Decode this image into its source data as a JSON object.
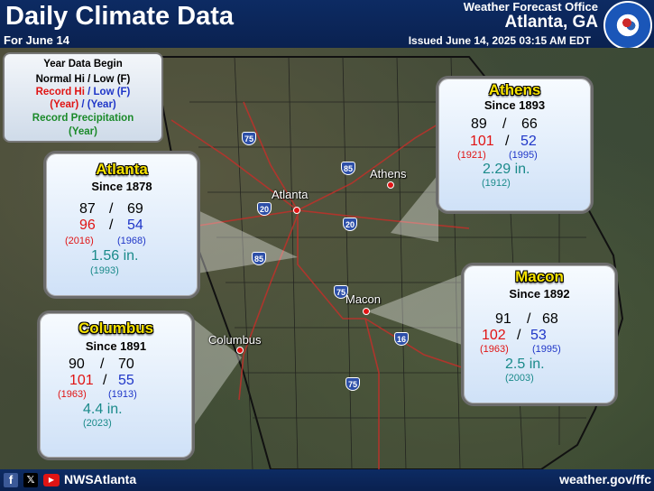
{
  "header": {
    "title": "Daily Climate Data",
    "date_label": "For June 14",
    "office": "Weather Forecast Office",
    "city": "Atlanta, GA",
    "issued": "Issued June 14, 2025 03:15 AM EDT"
  },
  "legend": {
    "line1": "Year Data Begin",
    "line2": "Normal Hi / Low  (F)",
    "line3_hi": "Record Hi",
    "line3_lo": "/ Low  (F)",
    "line4_hi": "(Year)",
    "line4_lo": "/ (Year)",
    "line5": "Record Precipitation",
    "line6": "(Year)"
  },
  "stations": {
    "atlanta": {
      "name": "Atlanta",
      "since": "Since 1878",
      "normal_hi": "87",
      "normal_lo": "69",
      "record_hi": "96",
      "record_lo": "54",
      "record_hi_year": "(2016)",
      "record_lo_year": "(1968)",
      "record_pcp": "1.56 in.",
      "record_pcp_year": "(1993)"
    },
    "athens": {
      "name": "Athens",
      "since": "Since 1893",
      "normal_hi": "89",
      "normal_lo": "66",
      "record_hi": "101",
      "record_lo": "52",
      "record_hi_year": "(1921)",
      "record_lo_year": "(1995)",
      "record_pcp": "2.29 in.",
      "record_pcp_year": "(1912)"
    },
    "macon": {
      "name": "Macon",
      "since": "Since 1892",
      "normal_hi": "91",
      "normal_lo": "68",
      "record_hi": "102",
      "record_lo": "53",
      "record_hi_year": "(1963)",
      "record_lo_year": "(1995)",
      "record_pcp": "2.5 in.",
      "record_pcp_year": "(2003)"
    },
    "columbus": {
      "name": "Columbus",
      "since": "Since 1891",
      "normal_hi": "90",
      "normal_lo": "70",
      "record_hi": "101",
      "record_lo": "55",
      "record_hi_year": "(1963)",
      "record_lo_year": "(1913)",
      "record_pcp": "4.4 in.",
      "record_pcp_year": "(2023)"
    }
  },
  "map_labels": {
    "atlanta": "Atlanta",
    "athens": "Athens",
    "macon": "Macon",
    "columbus": "Columbus"
  },
  "interstates": [
    "75",
    "85",
    "20",
    "20",
    "85",
    "75",
    "16",
    "75"
  ],
  "slash": "/",
  "footer": {
    "handle": "NWSAtlanta",
    "website": "weather.gov/ffc"
  },
  "colors": {
    "header_bg": "#0d2b63",
    "title_yellow": "#f7e300",
    "record_red": "#e01414",
    "record_blue": "#1f36c8",
    "precip_teal": "#1a8a8a"
  },
  "icons": [
    "nws-logo",
    "facebook-icon",
    "x-icon",
    "youtube-icon"
  ]
}
